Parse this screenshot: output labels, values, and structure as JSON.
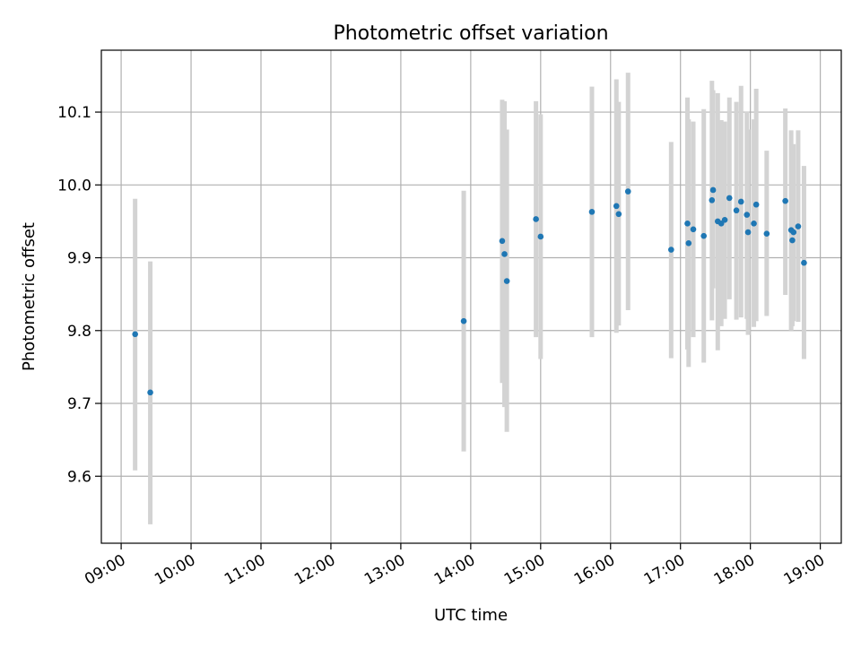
{
  "chart_data": {
    "type": "scatter",
    "title": "Photometric offset variation",
    "xlabel": "UTC time",
    "ylabel": "Photometric offset",
    "x_ticks": [
      "09:00",
      "10:00",
      "11:00",
      "12:00",
      "13:00",
      "14:00",
      "15:00",
      "16:00",
      "17:00",
      "18:00",
      "19:00"
    ],
    "y_ticks": [
      "9.6",
      "9.7",
      "9.8",
      "9.9",
      "10.0",
      "10.1"
    ],
    "xlim": [
      "08:43",
      "19:18"
    ],
    "ylim": [
      9.508,
      10.185
    ],
    "grid": true,
    "colors": {
      "point": "#1f77b4",
      "errorbar": "#d3d3d3",
      "grid": "#b0b0b0",
      "axis": "#000000"
    },
    "series": [
      {
        "points": [
          {
            "x": "09:12",
            "y": 9.795,
            "y_err": [
              9.608,
              9.981
            ]
          },
          {
            "x": "09:25",
            "y": 9.715,
            "y_err": [
              9.534,
              9.895
            ]
          },
          {
            "x": "13:54",
            "y": 9.813,
            "y_err": [
              9.634,
              9.992
            ]
          },
          {
            "x": "14:27",
            "y": 9.923,
            "y_err": [
              9.728,
              10.117
            ]
          },
          {
            "x": "14:29",
            "y": 9.905,
            "y_err": [
              9.695,
              10.115
            ]
          },
          {
            "x": "14:31",
            "y": 9.868,
            "y_err": [
              9.661,
              10.076
            ]
          },
          {
            "x": "14:56",
            "y": 9.953,
            "y_err": [
              9.791,
              10.115
            ]
          },
          {
            "x": "15:00",
            "y": 9.929,
            "y_err": [
              9.761,
              10.097
            ]
          },
          {
            "x": "15:44",
            "y": 9.963,
            "y_err": [
              9.791,
              10.135
            ]
          },
          {
            "x": "16:05",
            "y": 9.971,
            "y_err": [
              9.797,
              10.145
            ]
          },
          {
            "x": "16:07",
            "y": 9.96,
            "y_err": [
              9.807,
              10.114
            ]
          },
          {
            "x": "16:15",
            "y": 9.991,
            "y_err": [
              9.828,
              10.154
            ]
          },
          {
            "x": "16:52",
            "y": 9.911,
            "y_err": [
              9.762,
              10.059
            ]
          },
          {
            "x": "17:06",
            "y": 9.947,
            "y_err": [
              9.774,
              10.12
            ]
          },
          {
            "x": "17:07",
            "y": 9.92,
            "y_err": [
              9.75,
              10.09
            ]
          },
          {
            "x": "17:11",
            "y": 9.939,
            "y_err": [
              9.791,
              10.087
            ]
          },
          {
            "x": "17:20",
            "y": 9.93,
            "y_err": [
              9.756,
              10.104
            ]
          },
          {
            "x": "17:27",
            "y": 9.979,
            "y_err": [
              9.814,
              10.143
            ]
          },
          {
            "x": "17:28",
            "y": 9.993,
            "y_err": [
              9.858,
              10.13
            ]
          },
          {
            "x": "17:32",
            "y": 9.95,
            "y_err": [
              9.773,
              10.126
            ]
          },
          {
            "x": "17:35",
            "y": 9.947,
            "y_err": [
              9.806,
              10.089
            ]
          },
          {
            "x": "17:38",
            "y": 9.952,
            "y_err": [
              9.816,
              10.087
            ]
          },
          {
            "x": "17:42",
            "y": 9.982,
            "y_err": [
              9.843,
              10.12
            ]
          },
          {
            "x": "17:48",
            "y": 9.965,
            "y_err": [
              9.815,
              10.114
            ]
          },
          {
            "x": "17:52",
            "y": 9.977,
            "y_err": [
              9.818,
              10.136
            ]
          },
          {
            "x": "17:57",
            "y": 9.959,
            "y_err": [
              9.816,
              10.101
            ]
          },
          {
            "x": "17:58",
            "y": 9.935,
            "y_err": [
              9.794,
              10.076
            ]
          },
          {
            "x": "18:03",
            "y": 9.947,
            "y_err": [
              9.805,
              10.09
            ]
          },
          {
            "x": "18:05",
            "y": 9.973,
            "y_err": [
              9.813,
              10.132
            ]
          },
          {
            "x": "18:14",
            "y": 9.933,
            "y_err": [
              9.82,
              10.047
            ]
          },
          {
            "x": "18:30",
            "y": 9.978,
            "y_err": [
              9.849,
              10.105
            ]
          },
          {
            "x": "18:35",
            "y": 9.938,
            "y_err": [
              9.8,
              10.075
            ]
          },
          {
            "x": "18:36",
            "y": 9.924,
            "y_err": [
              9.806,
              10.042
            ]
          },
          {
            "x": "18:37",
            "y": 9.935,
            "y_err": [
              9.813,
              10.056
            ]
          },
          {
            "x": "18:41",
            "y": 9.943,
            "y_err": [
              9.812,
              10.075
            ]
          },
          {
            "x": "18:46",
            "y": 9.893,
            "y_err": [
              9.761,
              10.026
            ]
          }
        ]
      }
    ]
  }
}
